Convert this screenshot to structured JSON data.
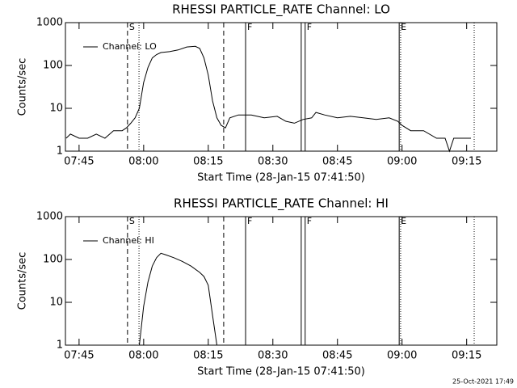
{
  "chart_data": [
    {
      "type": "line",
      "title": "RHESSI PARTICLE_RATE Channel: LO",
      "x_label": "Start Time (28-Jan-15 07:41:50)",
      "y_label": "Counts/sec",
      "log_y": true,
      "legend": "upper left",
      "xlim": [
        "07:41:50",
        "09:22:00"
      ],
      "xticks": [
        "07:45",
        "08:00",
        "08:15",
        "08:30",
        "08:45",
        "09:00",
        "09:15"
      ],
      "ylim": [
        1,
        1000
      ],
      "yticks": [
        1,
        10,
        100,
        1000
      ],
      "markers": [
        {
          "x": "07:56:15",
          "style": "dashed",
          "label": "S"
        },
        {
          "x": "07:58:55",
          "style": "dotted"
        },
        {
          "x": "08:18:35",
          "style": "dashed"
        },
        {
          "x": "08:23:40",
          "style": "solid",
          "label": "F"
        },
        {
          "x": "08:36:35",
          "style": "solid"
        },
        {
          "x": "08:37:30",
          "style": "solid",
          "label": "F"
        },
        {
          "x": "08:59:20",
          "style": "solid",
          "label": "E"
        },
        {
          "x": "08:59:40",
          "style": "dotted"
        },
        {
          "x": "09:16:45",
          "style": "dotted"
        }
      ],
      "series": [
        {
          "name": "Channel: LO",
          "color": "#000000",
          "x": [
            "07:42",
            "07:43",
            "07:45",
            "07:47",
            "07:49",
            "07:51",
            "07:53",
            "07:55",
            "07:56",
            "07:57",
            "07:58",
            "07:59",
            "08:00",
            "08:01",
            "08:02",
            "08:03",
            "08:04",
            "08:06",
            "08:08",
            "08:10",
            "08:12",
            "08:13",
            "08:14",
            "08:15",
            "08:16",
            "08:17",
            "08:18",
            "08:19",
            "08:20",
            "08:22",
            "08:25",
            "08:28",
            "08:31",
            "08:33",
            "08:35",
            "08:37",
            "08:39",
            "08:40",
            "08:42",
            "08:45",
            "08:48",
            "08:51",
            "08:54",
            "08:57",
            "08:59",
            "09:00",
            "09:02",
            "09:05",
            "09:08",
            "09:10",
            "09:11",
            "09:12",
            "09:14",
            "09:16"
          ],
          "values": [
            2,
            2.5,
            2,
            2,
            2.5,
            2,
            3,
            3,
            3.5,
            4.5,
            6,
            10,
            40,
            90,
            150,
            180,
            200,
            210,
            230,
            270,
            280,
            250,
            150,
            60,
            15,
            6,
            4,
            3.5,
            6,
            7,
            7,
            6,
            6.5,
            5,
            4.5,
            5.5,
            6,
            8,
            7,
            6,
            6.5,
            6,
            5.5,
            6,
            5,
            4,
            3,
            3,
            2,
            2,
            1,
            2,
            2,
            2
          ]
        }
      ]
    },
    {
      "type": "line",
      "title": "RHESSI PARTICLE_RATE Channel: HI",
      "x_label": "Start Time (28-Jan-15 07:41:50)",
      "y_label": "Counts/sec",
      "log_y": true,
      "legend": "upper left",
      "xlim": [
        "07:41:50",
        "09:22:00"
      ],
      "xticks": [
        "07:45",
        "08:00",
        "08:15",
        "08:30",
        "08:45",
        "09:00",
        "09:15"
      ],
      "ylim": [
        1,
        1000
      ],
      "yticks": [
        1,
        10,
        100,
        1000
      ],
      "markers": [
        {
          "x": "07:56:15",
          "style": "dashed",
          "label": "S"
        },
        {
          "x": "07:58:55",
          "style": "dotted"
        },
        {
          "x": "08:18:35",
          "style": "dashed"
        },
        {
          "x": "08:23:40",
          "style": "solid",
          "label": "F"
        },
        {
          "x": "08:36:35",
          "style": "solid"
        },
        {
          "x": "08:37:30",
          "style": "solid",
          "label": "F"
        },
        {
          "x": "08:59:20",
          "style": "solid",
          "label": "E"
        },
        {
          "x": "08:59:40",
          "style": "dotted"
        },
        {
          "x": "09:16:45",
          "style": "dotted"
        }
      ],
      "series": [
        {
          "name": "Channel: HI",
          "color": "#000000",
          "x": [
            "07:59",
            "08:00",
            "08:01",
            "08:02",
            "08:03",
            "08:04",
            "08:05",
            "08:07",
            "08:09",
            "08:11",
            "08:13",
            "08:14",
            "08:15",
            "08:16",
            "08:17"
          ],
          "values": [
            1,
            8,
            30,
            70,
            110,
            140,
            130,
            110,
            90,
            70,
            50,
            40,
            25,
            5,
            1
          ]
        }
      ]
    }
  ],
  "timestamp": "25-Oct-2021 17:49"
}
